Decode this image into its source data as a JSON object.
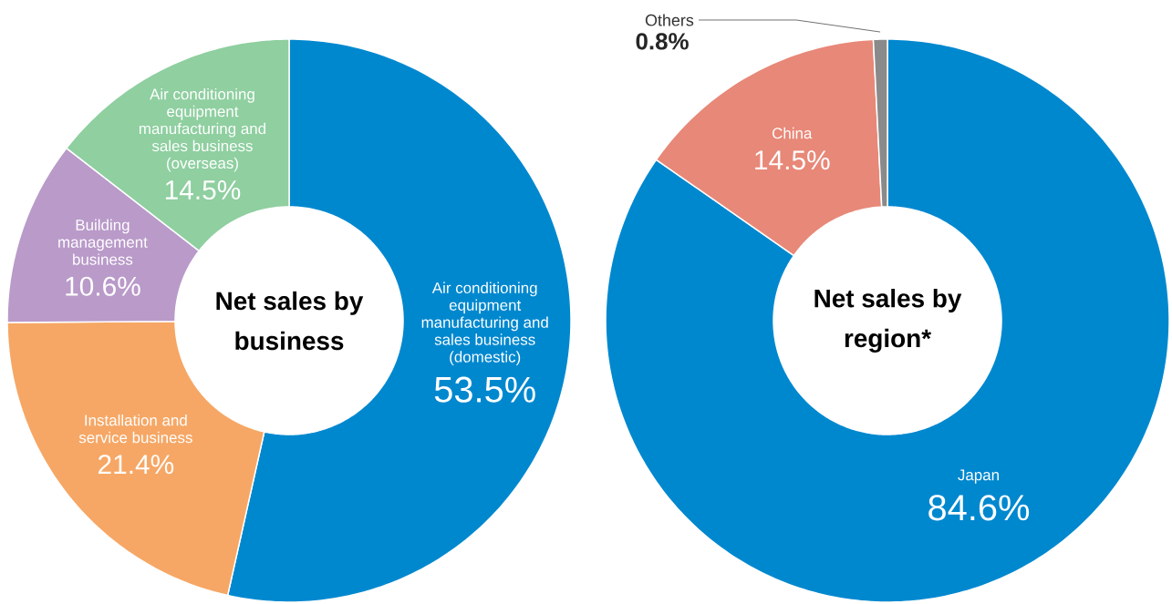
{
  "chart_data": [
    {
      "type": "donut",
      "title": "Net sales by business",
      "categories": [
        "Air conditioning equipment manufacturing and sales business (domestic)",
        "Installation and service business",
        "Building management business",
        "Air conditioning equipment manufacturing and sales business (overseas)"
      ],
      "values": [
        53.5,
        21.4,
        10.6,
        14.5
      ],
      "value_labels": [
        "53.5%",
        "21.4%",
        "10.6%",
        "14.5%"
      ],
      "colors": [
        "#0088cf",
        "#f6a765",
        "#b99ac9",
        "#8fcfa0"
      ]
    },
    {
      "type": "donut",
      "title": "Net sales by region*",
      "categories": [
        "Japan",
        "China",
        "Others"
      ],
      "values": [
        84.6,
        14.5,
        0.8
      ],
      "value_labels": [
        "84.6%",
        "14.5%",
        "0.8%"
      ],
      "colors": [
        "#0088cf",
        "#e88878",
        "#8a8a8a"
      ]
    }
  ]
}
